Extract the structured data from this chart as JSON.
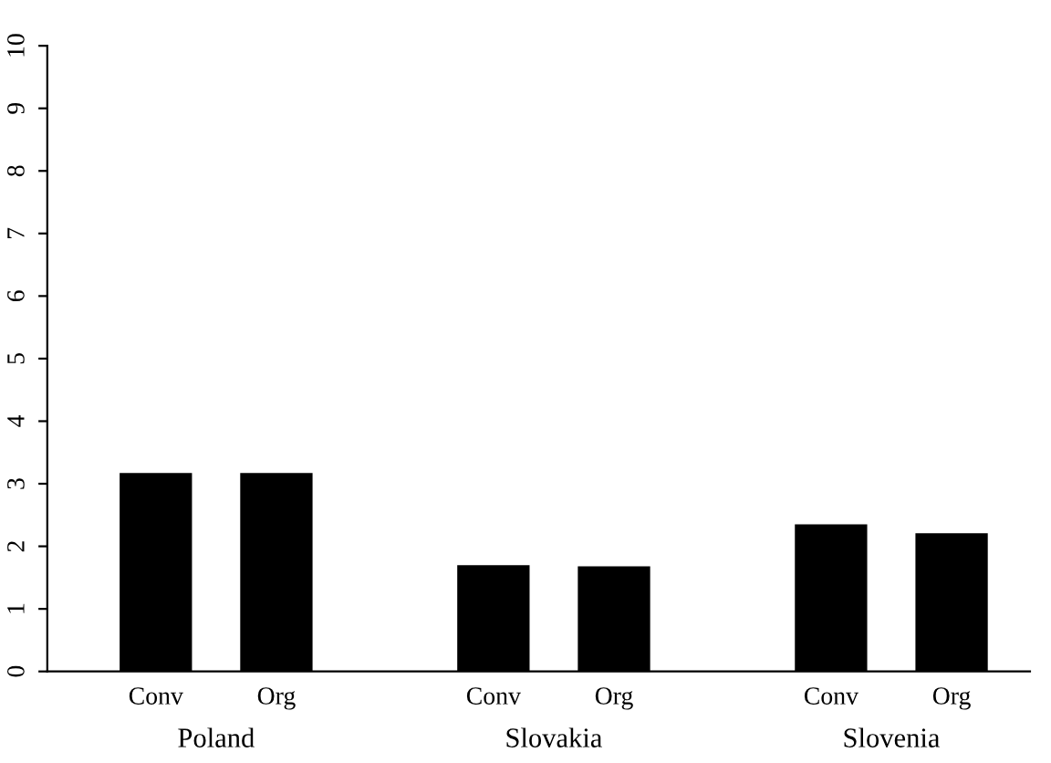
{
  "chart_data": {
    "type": "bar",
    "categories": [
      "Conv",
      "Org",
      "Conv",
      "Org",
      "Conv",
      "Org"
    ],
    "values": [
      3.17,
      3.17,
      1.7,
      1.68,
      2.35,
      2.21
    ],
    "color": "#000000",
    "annotations": [
      "Poland",
      "Slovakia",
      "Slovenia"
    ],
    "ylim": [
      0,
      10
    ],
    "yticks": [
      0,
      1,
      2,
      3,
      4,
      5,
      6,
      7,
      8,
      9,
      10
    ],
    "grid": false,
    "legend": false
  }
}
